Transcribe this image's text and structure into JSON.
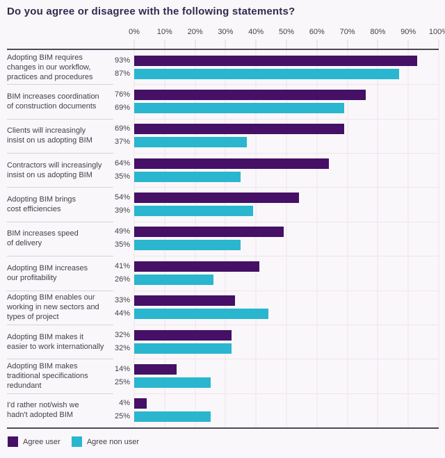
{
  "title": "Do you agree or disagree with the following statements?",
  "colors": {
    "background": "#FAF7FA",
    "agree_user": "#451065",
    "agree_non_user": "#29B6CE",
    "gridline": "#F0E2EE",
    "axis_line": "#4E4956",
    "row_separator": "#D7D1D8",
    "text": "#433E4A",
    "title_text": "#322A4E"
  },
  "chart_data": {
    "type": "bar",
    "orientation": "horizontal",
    "title": "Do you agree or disagree with the following statements?",
    "xlabel": "",
    "ylabel": "",
    "xlim": [
      0,
      100
    ],
    "x_ticks": [
      "0%",
      "10%",
      "20%",
      "30%",
      "40%",
      "50%",
      "60%",
      "70%",
      "80%",
      "90%",
      "100%"
    ],
    "grid": true,
    "legend_position": "bottom-left",
    "categories": [
      "Adopting BIM requires\nchanges in our workflow,\npractices and procedures",
      "BIM increases coordination\nof construction documents",
      "Clients will increasingly\ninsist on us adopting BIM",
      "Contractors will increasingly\ninsist on us adopting BIM",
      "Adopting BIM brings\ncost efficiencies",
      "BIM increases speed\nof delivery",
      "Adopting BIM increases\nour profitability",
      "Adopting BIM enables our\nworking in new sectors and\ntypes of project",
      "Adopting BIM makes it\neasier to work internationally",
      "Adopting BIM makes\ntraditional specifications\nredundant",
      "I'd rather not/wish we\nhadn't adopted BIM"
    ],
    "series": [
      {
        "name": "Agree user",
        "color": "#451065",
        "values": [
          93,
          76,
          69,
          64,
          54,
          49,
          41,
          33,
          32,
          14,
          4
        ],
        "value_labels": [
          "93%",
          "76%",
          "69%",
          "64%",
          "54%",
          "49%",
          "41%",
          "33%",
          "32%",
          "14%",
          "4%"
        ]
      },
      {
        "name": "Agree non user",
        "color": "#29B6CE",
        "values": [
          87,
          69,
          37,
          35,
          39,
          35,
          26,
          44,
          32,
          25,
          25
        ],
        "value_labels": [
          "87%",
          "69%",
          "37%",
          "35%",
          "39%",
          "35%",
          "26%",
          "44%",
          "32%",
          "25%",
          "25%"
        ]
      }
    ]
  }
}
